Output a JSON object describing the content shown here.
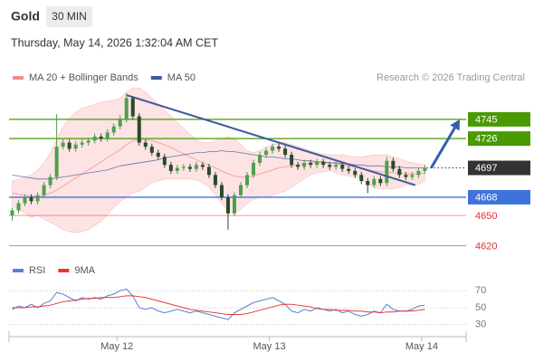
{
  "header": {
    "symbol": "Gold",
    "interval": "30 MIN",
    "datetime": "Thursday, May 14, 2026 1:32:04 AM CET",
    "credit": "Research © 2026 Trading Central"
  },
  "chart_data": [
    {
      "type": "candlestick",
      "up_color": "#4e9f4e",
      "down_color": "#2b4a2b",
      "open": [
        4650,
        4655,
        4662,
        4668,
        4664,
        4670,
        4680,
        4688,
        4718,
        4722,
        4716,
        4720,
        4722,
        4724,
        4728,
        4726,
        4732,
        4738,
        4745,
        4766,
        4748,
        4722,
        4718,
        4712,
        4708,
        4700,
        4694,
        4697,
        4698,
        4696,
        4700,
        4698,
        4690,
        4680,
        4668,
        4652,
        4670,
        4680,
        4690,
        4702,
        4710,
        4714,
        4718,
        4716,
        4710,
        4700,
        4698,
        4702,
        4700,
        4703,
        4700,
        4698,
        4700,
        4696,
        4694,
        4690,
        4684,
        4680,
        4686,
        4682,
        4704,
        4696,
        4690,
        4688,
        4690,
        4694
      ],
      "high": [
        4658,
        4665,
        4671,
        4671,
        4673,
        4683,
        4691,
        4750,
        4726,
        4725,
        4723,
        4725,
        4727,
        4731,
        4731,
        4735,
        4741,
        4749,
        4771,
        4768,
        4751,
        4725,
        4721,
        4715,
        4711,
        4703,
        4700,
        4701,
        4701,
        4703,
        4703,
        4701,
        4693,
        4683,
        4671,
        4673,
        4683,
        4693,
        4705,
        4713,
        4717,
        4721,
        4721,
        4719,
        4713,
        4703,
        4705,
        4705,
        4706,
        4706,
        4703,
        4703,
        4703,
        4699,
        4697,
        4693,
        4687,
        4689,
        4689,
        4708,
        4707,
        4699,
        4693,
        4693,
        4697,
        4700
      ],
      "low": [
        4645,
        4652,
        4659,
        4661,
        4661,
        4667,
        4677,
        4685,
        4715,
        4713,
        4713,
        4717,
        4719,
        4721,
        4723,
        4723,
        4729,
        4735,
        4742,
        4745,
        4719,
        4715,
        4709,
        4705,
        4697,
        4691,
        4691,
        4694,
        4693,
        4693,
        4695,
        4687,
        4677,
        4665,
        4636,
        4649,
        4667,
        4677,
        4687,
        4699,
        4707,
        4711,
        4713,
        4707,
        4697,
        4695,
        4695,
        4697,
        4697,
        4697,
        4695,
        4695,
        4693,
        4691,
        4687,
        4681,
        4672,
        4677,
        4679,
        4679,
        4693,
        4687,
        4685,
        4685,
        4687,
        4691
      ],
      "close": [
        4655,
        4662,
        4668,
        4664,
        4670,
        4680,
        4688,
        4718,
        4722,
        4716,
        4720,
        4722,
        4724,
        4728,
        4726,
        4732,
        4738,
        4745,
        4766,
        4748,
        4722,
        4718,
        4712,
        4708,
        4700,
        4694,
        4697,
        4698,
        4696,
        4700,
        4698,
        4690,
        4680,
        4668,
        4652,
        4670,
        4680,
        4690,
        4702,
        4710,
        4714,
        4718,
        4716,
        4710,
        4700,
        4698,
        4702,
        4700,
        4703,
        4700,
        4698,
        4700,
        4696,
        4694,
        4690,
        4684,
        4680,
        4686,
        4682,
        4704,
        4696,
        4690,
        4688,
        4690,
        4694,
        4697
      ],
      "series": [
        {
          "name": "MA 20 + Bollinger Bands",
          "color": "#f28b8b",
          "band_color": "#fde3e3",
          "values": [
            4672,
            4671,
            4670,
            4669,
            4669,
            4670,
            4672,
            4675,
            4679,
            4683,
            4687,
            4691,
            4695,
            4699,
            4703,
            4707,
            4711,
            4715,
            4720,
            4724,
            4725,
            4725,
            4724,
            4722,
            4720,
            4717,
            4714,
            4711,
            4708,
            4705,
            4702,
            4700,
            4697,
            4694,
            4691,
            4689,
            4688,
            4688,
            4689,
            4691,
            4693,
            4695,
            4697,
            4698,
            4699,
            4700,
            4701,
            4702,
            4702,
            4702,
            4702,
            4701,
            4700,
            4699,
            4698,
            4697,
            4695,
            4694,
            4693,
            4693,
            4692,
            4692,
            4691,
            4691,
            4691,
            4692
          ],
          "upper": [
            4684,
            4686,
            4688,
            4690,
            4695,
            4702,
            4712,
            4725,
            4738,
            4746,
            4752,
            4756,
            4758,
            4760,
            4762,
            4763,
            4764,
            4766,
            4772,
            4776,
            4776,
            4772,
            4766,
            4760,
            4754,
            4748,
            4742,
            4736,
            4730,
            4725,
            4722,
            4722,
            4724,
            4726,
            4728,
            4726,
            4720,
            4714,
            4712,
            4714,
            4718,
            4720,
            4722,
            4722,
            4720,
            4718,
            4716,
            4714,
            4712,
            4711,
            4710,
            4710,
            4710,
            4709,
            4708,
            4708,
            4709,
            4710,
            4710,
            4710,
            4708,
            4706,
            4704,
            4702,
            4701,
            4700
          ],
          "lower": [
            4660,
            4656,
            4652,
            4648,
            4650,
            4646,
            4643,
            4640,
            4636,
            4634,
            4633,
            4634,
            4636,
            4640,
            4644,
            4651,
            4658,
            4664,
            4668,
            4672,
            4674,
            4678,
            4682,
            4684,
            4686,
            4686,
            4686,
            4686,
            4686,
            4685,
            4682,
            4678,
            4670,
            4662,
            4654,
            4652,
            4656,
            4662,
            4666,
            4668,
            4668,
            4670,
            4672,
            4674,
            4678,
            4682,
            4686,
            4690,
            4692,
            4693,
            4694,
            4692,
            4690,
            4689,
            4688,
            4686,
            4681,
            4678,
            4676,
            4676,
            4676,
            4678,
            4680,
            4680,
            4681,
            4684
          ]
        },
        {
          "name": "MA 50",
          "color": "#3d5a9c",
          "values": [
            4690,
            4689,
            4688,
            4687,
            4686,
            4686,
            4686,
            4687,
            4688,
            4689,
            4690,
            4691,
            4692,
            4693,
            4694,
            4695,
            4697,
            4699,
            4700,
            4701,
            4702,
            4703,
            4704,
            4705,
            4707,
            4708,
            4709,
            4710,
            4711,
            4712,
            4712,
            4713,
            4713,
            4714,
            4713,
            4713,
            4712,
            4711,
            4710,
            4709,
            4708,
            4708,
            4707,
            4706,
            4706,
            4705,
            4704,
            4704,
            4703,
            4703,
            4702,
            4702,
            4701,
            4701,
            4700,
            4700,
            4699,
            4699,
            4699,
            4698,
            4698,
            4698,
            4697,
            4697,
            4697,
            4697
          ]
        }
      ],
      "trendline": {
        "x": [
          18.5,
          64
        ],
        "y": [
          4769,
          4680
        ],
        "color": "#3d5a9c"
      },
      "arrow": {
        "x": [
          66.5,
          71
        ],
        "y": [
          4697,
          4745
        ],
        "color": "#2f5fae"
      },
      "levels": [
        {
          "value": 4745,
          "style": "box",
          "color": "#4a9a04"
        },
        {
          "value": 4726,
          "style": "box",
          "color": "#4a9a04"
        },
        {
          "value": 4697,
          "style": "current",
          "color": "#333333"
        },
        {
          "value": 4668,
          "style": "box",
          "color": "#3f73dc"
        },
        {
          "value": 4650,
          "style": "text",
          "color": "#e03030"
        },
        {
          "value": 4620,
          "style": "text",
          "color": "#e03030"
        }
      ],
      "xlim": [
        0,
        72
      ],
      "xticks": [
        {
          "value": 17,
          "label": "May 12"
        },
        {
          "value": 41,
          "label": "May 13"
        },
        {
          "value": 65,
          "label": "May 14"
        }
      ],
      "ylim": [
        4608,
        4778
      ]
    },
    {
      "type": "line",
      "series": [
        {
          "name": "RSI",
          "color": "#5b7fd6",
          "values": [
            48,
            52,
            50,
            54,
            50,
            55,
            58,
            68,
            66,
            62,
            58,
            62,
            60,
            62,
            60,
            64,
            66,
            70,
            72,
            64,
            50,
            48,
            50,
            46,
            44,
            46,
            48,
            46,
            44,
            46,
            44,
            42,
            40,
            38,
            36,
            44,
            48,
            52,
            56,
            58,
            60,
            62,
            58,
            54,
            46,
            44,
            48,
            46,
            50,
            48,
            46,
            48,
            44,
            46,
            42,
            40,
            42,
            46,
            44,
            54,
            48,
            46,
            46,
            48,
            52,
            53
          ]
        },
        {
          "name": "9MA",
          "color": "#e53935",
          "values": [
            50,
            50,
            50,
            51,
            51,
            52,
            53,
            55,
            57,
            58,
            59,
            60,
            61,
            61,
            62,
            62,
            62,
            63,
            64,
            64,
            63,
            62,
            60,
            58,
            56,
            54,
            52,
            50,
            48,
            47,
            46,
            45,
            44,
            43,
            42,
            42,
            42,
            43,
            45,
            47,
            49,
            51,
            53,
            54,
            54,
            53,
            52,
            51,
            49,
            48,
            48,
            47,
            47,
            47,
            46,
            46,
            45,
            45,
            44,
            45,
            45,
            46,
            46,
            46,
            47,
            48
          ]
        }
      ],
      "xlim": [
        0,
        72
      ],
      "ylim": [
        18,
        82
      ],
      "yticks": [
        70,
        50,
        30
      ],
      "grid": true
    }
  ]
}
